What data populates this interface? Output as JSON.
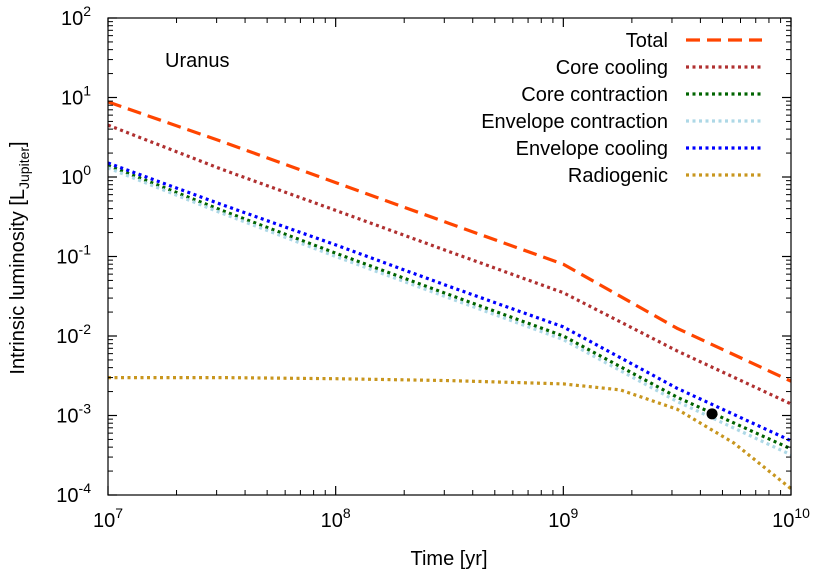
{
  "chart_data": {
    "type": "line",
    "annotation": "Uranus",
    "xlabel": "Time [yr]",
    "ylabel": {
      "main": "Intrinsic luminosity [L",
      "sub": "Jupiter",
      "tail": "]"
    },
    "x_scale": "log",
    "y_scale": "log",
    "xlim": [
      10000000,
      10000000000
    ],
    "ylim": [
      0.0001,
      100
    ],
    "grid": false,
    "legend_position": "top-right",
    "x_ticks": [
      {
        "base": "10",
        "exp": "7",
        "value": 10000000
      },
      {
        "base": "10",
        "exp": "8",
        "value": 100000000
      },
      {
        "base": "10",
        "exp": "9",
        "value": 1000000000
      },
      {
        "base": "10",
        "exp": "10",
        "value": 10000000000
      }
    ],
    "y_ticks": [
      {
        "base": "10",
        "exp": "-4",
        "value": 0.0001
      },
      {
        "base": "10",
        "exp": "-3",
        "value": 0.001
      },
      {
        "base": "10",
        "exp": "-2",
        "value": 0.01
      },
      {
        "base": "10",
        "exp": "-1",
        "value": 0.1
      },
      {
        "base": "10",
        "exp": "0",
        "value": 1
      },
      {
        "base": "10",
        "exp": "1",
        "value": 10
      },
      {
        "base": "10",
        "exp": "2",
        "value": 100
      }
    ],
    "series": [
      {
        "name": "Total",
        "color": "#ff4500",
        "dash": "dashed",
        "x": [
          10000000,
          31600000,
          100000000,
          316000000,
          1000000000,
          3160000000,
          10000000000
        ],
        "y": [
          8.8,
          2.8,
          0.85,
          0.26,
          0.08,
          0.0125,
          0.0027
        ]
      },
      {
        "name": "Core cooling",
        "color": "#b03030",
        "dash": "dotted",
        "x": [
          10000000,
          31600000,
          100000000,
          316000000,
          1000000000,
          3160000000,
          10000000000
        ],
        "y": [
          4.5,
          1.25,
          0.38,
          0.115,
          0.035,
          0.0065,
          0.0014
        ]
      },
      {
        "name": "Core contraction",
        "color": "#006400",
        "dash": "dotted",
        "x": [
          10000000,
          31600000,
          100000000,
          316000000,
          1000000000,
          3160000000,
          10000000000
        ],
        "y": [
          1.4,
          0.38,
          0.11,
          0.033,
          0.01,
          0.0017,
          0.00038
        ]
      },
      {
        "name": "Envelope contraction",
        "color": "#add8e6",
        "dash": "dotted",
        "x": [
          10000000,
          31600000,
          100000000,
          316000000,
          1000000000,
          3160000000,
          10000000000
        ],
        "y": [
          1.3,
          0.35,
          0.1,
          0.03,
          0.009,
          0.0015,
          0.00032
        ]
      },
      {
        "name": "Envelope cooling",
        "color": "#0000ff",
        "dash": "dotted",
        "x": [
          10000000,
          31600000,
          100000000,
          316000000,
          1000000000,
          3160000000,
          10000000000
        ],
        "y": [
          1.5,
          0.45,
          0.14,
          0.042,
          0.013,
          0.0022,
          0.00048
        ]
      },
      {
        "name": "Radiogenic",
        "color": "#c8961e",
        "dash": "dotted",
        "x": [
          10000000,
          31600000,
          100000000,
          316000000,
          1000000000,
          1780000000,
          3160000000,
          5620000000,
          10000000000
        ],
        "y": [
          0.003,
          0.003,
          0.0029,
          0.00275,
          0.0025,
          0.0021,
          0.0012,
          0.00045,
          0.00012
        ]
      }
    ],
    "points": [
      {
        "x": 4500000000,
        "y": 0.00105,
        "color": "#000000"
      }
    ]
  }
}
